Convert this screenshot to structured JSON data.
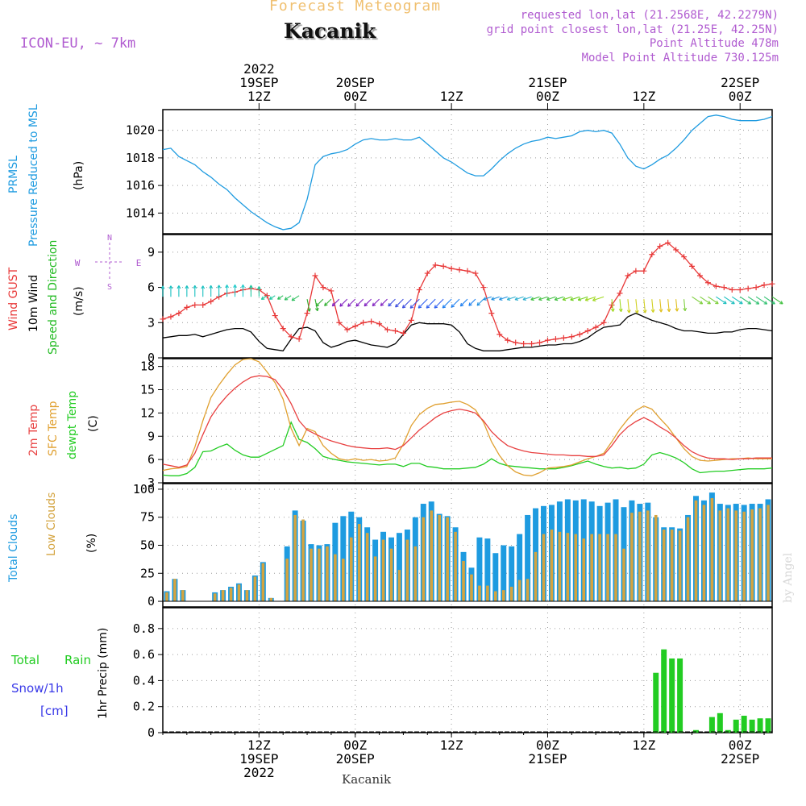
{
  "header": {
    "title": "Forecast Meteogram",
    "location": "Kacanik",
    "model": "ICON-EU, ~ 7km",
    "requested": "requested lon,lat (21.2568E, 42.2279N)",
    "grid_point": "grid point closest lon,lat (21.25E, 42.25N)",
    "point_altitude": "Point Altitude 478m",
    "model_altitude": "Model Point Altitude 730.125m",
    "footer_location": "Kacanik",
    "watermark": "by Angel"
  },
  "time_axis": {
    "top_ticks": [
      {
        "t": 12,
        "lines": [
          "2022",
          "19SEP",
          "12Z"
        ]
      },
      {
        "t": 24,
        "lines": [
          "20SEP",
          "00Z"
        ]
      },
      {
        "t": 36,
        "lines": [
          "12Z"
        ]
      },
      {
        "t": 48,
        "lines": [
          "21SEP",
          "00Z"
        ]
      },
      {
        "t": 60,
        "lines": [
          "12Z"
        ]
      },
      {
        "t": 72,
        "lines": [
          "22SEP",
          "00Z"
        ]
      }
    ],
    "bottom_ticks": [
      {
        "t": 12,
        "lines": [
          "12Z",
          "19SEP",
          "2022"
        ]
      },
      {
        "t": 24,
        "lines": [
          "00Z",
          "20SEP"
        ]
      },
      {
        "t": 36,
        "lines": [
          "12Z"
        ]
      },
      {
        "t": 48,
        "lines": [
          "00Z",
          "21SEP"
        ]
      },
      {
        "t": 60,
        "lines": [
          "12Z"
        ]
      },
      {
        "t": 72,
        "lines": [
          "00Z",
          "22SEP"
        ]
      }
    ]
  },
  "colors": {
    "pressure": "#1e9be0",
    "gust": "#e83838",
    "wind10m": "#000000",
    "wind_label": "#22bb22",
    "temp2m": "#e84040",
    "sfc_temp": "#e0a030",
    "dewpoint": "#22cc22",
    "total_clouds": "#1e9be0",
    "low_clouds": "#d4a440",
    "rain": "#22cc22",
    "snow": "#3a3ae8",
    "purple": "#b05bd0"
  },
  "panels": {
    "pressure": {
      "labels": [
        "PRMSL",
        "Pressure Reduced to MSL",
        "(hPa)"
      ]
    },
    "wind": {
      "labels": [
        "Wind GUST",
        "10m Wind",
        "Speed and Direction",
        "(m/s)"
      ],
      "compass": {
        "n": "N",
        "s": "S",
        "w": "W",
        "e": "E"
      }
    },
    "temp": {
      "labels": [
        "2m Temp",
        "SFC Temp",
        "dewpt Temp",
        "(C)"
      ]
    },
    "clouds": {
      "labels": [
        "Total Clouds",
        "Low Clouds",
        "(%)"
      ]
    },
    "precip": {
      "labels": [
        "Total",
        "Rain",
        "Snow/1h",
        "[cm]",
        "1hr Precip (mm)"
      ]
    }
  },
  "chart_data": [
    {
      "type": "line",
      "name": "pressure",
      "ylim": [
        1012.5,
        1021.5
      ],
      "yticks": [
        1014,
        1016,
        1018,
        1020
      ],
      "x": [
        0,
        1,
        2,
        3,
        4,
        5,
        6,
        7,
        8,
        9,
        10,
        11,
        12,
        13,
        14,
        15,
        16,
        17,
        18,
        19,
        20,
        21,
        22,
        23,
        24,
        25,
        26,
        27,
        28,
        29,
        30,
        31,
        32,
        33,
        34,
        35,
        36,
        37,
        38,
        39,
        40,
        41,
        42,
        43,
        44,
        45,
        46,
        47,
        48,
        49,
        50,
        51,
        52,
        53,
        54,
        55,
        56,
        57,
        58,
        59,
        60,
        61,
        62,
        63,
        64,
        65,
        66,
        67,
        68,
        69,
        70,
        71,
        72,
        73,
        74,
        75,
        76
      ],
      "series": [
        {
          "values": [
            1018.6,
            1018.7,
            1018.1,
            1017.8,
            1017.5,
            1017.0,
            1016.6,
            1016.1,
            1015.7,
            1015.1,
            1014.6,
            1014.1,
            1013.7,
            1013.3,
            1013.0,
            1012.8,
            1012.9,
            1013.3,
            1015.0,
            1017.5,
            1018.1,
            1018.3,
            1018.4,
            1018.6,
            1019.0,
            1019.3,
            1019.4,
            1019.3,
            1019.3,
            1019.4,
            1019.3,
            1019.3,
            1019.5,
            1019.0,
            1018.5,
            1018.0,
            1017.7,
            1017.3,
            1016.9,
            1016.7,
            1016.7,
            1017.2,
            1017.8,
            1018.3,
            1018.7,
            1019.0,
            1019.2,
            1019.3,
            1019.5,
            1019.4,
            1019.5,
            1019.6,
            1019.9,
            1020.0,
            1019.9,
            1020.0,
            1019.8,
            1019.0,
            1018.0,
            1017.4,
            1017.2,
            1017.5,
            1017.9,
            1018.2,
            1018.7,
            1019.3,
            1020.0,
            1020.5,
            1021.0,
            1021.1,
            1021.0,
            1020.8,
            1020.7,
            1020.7,
            1020.7,
            1020.8,
            1021.0
          ]
        }
      ]
    },
    {
      "type": "line",
      "name": "wind",
      "ylim": [
        0,
        10.5
      ],
      "yticks": [
        0,
        3,
        6,
        9
      ],
      "x": [
        0,
        1,
        2,
        3,
        4,
        5,
        6,
        7,
        8,
        9,
        10,
        11,
        12,
        13,
        14,
        15,
        16,
        17,
        18,
        19,
        20,
        21,
        22,
        23,
        24,
        25,
        26,
        27,
        28,
        29,
        30,
        31,
        32,
        33,
        34,
        35,
        36,
        37,
        38,
        39,
        40,
        41,
        42,
        43,
        44,
        45,
        46,
        47,
        48,
        49,
        50,
        51,
        52,
        53,
        54,
        55,
        56,
        57,
        58,
        59,
        60,
        61,
        62,
        63,
        64,
        65,
        66,
        67,
        68,
        69,
        70,
        71,
        72,
        73,
        74,
        75,
        76
      ],
      "series": [
        {
          "name": "Wind GUST",
          "values": [
            3.3,
            3.5,
            3.8,
            4.3,
            4.5,
            4.5,
            4.8,
            5.2,
            5.5,
            5.6,
            5.8,
            5.9,
            5.8,
            5.3,
            3.6,
            2.5,
            1.8,
            1.6,
            3.8,
            7.0,
            6.0,
            5.7,
            3.0,
            2.4,
            2.7,
            3.0,
            3.1,
            2.9,
            2.4,
            2.3,
            2.1,
            3.2,
            5.8,
            7.2,
            7.9,
            7.8,
            7.6,
            7.5,
            7.4,
            7.2,
            6.0,
            3.8,
            2.0,
            1.5,
            1.3,
            1.2,
            1.2,
            1.3,
            1.5,
            1.6,
            1.7,
            1.8,
            2.0,
            2.3,
            2.6,
            3.0,
            4.5,
            5.5,
            7.0,
            7.4,
            7.4,
            8.8,
            9.5,
            9.8,
            9.2,
            8.6,
            7.8,
            7.0,
            6.4,
            6.1,
            6.0,
            5.8,
            5.8,
            5.9,
            6.0,
            6.2,
            6.3
          ]
        },
        {
          "name": "10m Wind",
          "values": [
            1.7,
            1.8,
            1.9,
            1.9,
            2.0,
            1.8,
            2.0,
            2.2,
            2.4,
            2.5,
            2.5,
            2.2,
            1.4,
            0.8,
            0.7,
            0.6,
            1.6,
            2.5,
            2.6,
            2.3,
            1.3,
            0.9,
            1.1,
            1.4,
            1.5,
            1.3,
            1.1,
            1.0,
            0.9,
            1.2,
            2.0,
            2.8,
            3.0,
            2.9,
            2.9,
            2.9,
            2.8,
            2.2,
            1.2,
            0.8,
            0.6,
            0.6,
            0.6,
            0.7,
            0.8,
            0.9,
            0.9,
            1.0,
            1.1,
            1.1,
            1.2,
            1.2,
            1.4,
            1.7,
            2.2,
            2.6,
            2.7,
            2.8,
            3.5,
            3.8,
            3.5,
            3.2,
            3.0,
            2.8,
            2.5,
            2.3,
            2.3,
            2.2,
            2.1,
            2.1,
            2.2,
            2.2,
            2.4,
            2.5,
            2.5,
            2.4,
            2.3
          ]
        }
      ]
    },
    {
      "type": "line",
      "name": "temperature",
      "ylim": [
        3,
        19
      ],
      "yticks": [
        3,
        6,
        9,
        12,
        15,
        18
      ],
      "x": [
        0,
        1,
        2,
        3,
        4,
        5,
        6,
        7,
        8,
        9,
        10,
        11,
        12,
        13,
        14,
        15,
        16,
        17,
        18,
        19,
        20,
        21,
        22,
        23,
        24,
        25,
        26,
        27,
        28,
        29,
        30,
        31,
        32,
        33,
        34,
        35,
        36,
        37,
        38,
        39,
        40,
        41,
        42,
        43,
        44,
        45,
        46,
        47,
        48,
        49,
        50,
        51,
        52,
        53,
        54,
        55,
        56,
        57,
        58,
        59,
        60,
        61,
        62,
        63,
        64,
        65,
        66,
        67,
        68,
        69,
        70,
        71,
        72,
        73,
        74,
        75,
        76
      ],
      "series": [
        {
          "name": "2m Temp",
          "values": [
            5.4,
            5.2,
            5.0,
            5.3,
            6.8,
            9.2,
            11.5,
            13.0,
            14.2,
            15.2,
            16.0,
            16.6,
            16.8,
            16.7,
            16.3,
            15.0,
            13.2,
            11.0,
            9.8,
            9.3,
            8.8,
            8.4,
            8.1,
            7.8,
            7.6,
            7.5,
            7.4,
            7.4,
            7.5,
            7.3,
            7.8,
            8.8,
            9.8,
            10.6,
            11.4,
            12.0,
            12.3,
            12.5,
            12.3,
            12.0,
            11.0,
            9.6,
            8.6,
            7.8,
            7.4,
            7.1,
            6.9,
            6.8,
            6.7,
            6.6,
            6.6,
            6.5,
            6.5,
            6.4,
            6.4,
            6.6,
            7.8,
            9.2,
            10.2,
            10.9,
            11.4,
            10.9,
            10.2,
            9.6,
            8.8,
            7.8,
            7.0,
            6.5,
            6.2,
            6.1,
            6.1,
            6.0,
            6.1,
            6.1,
            6.2,
            6.2,
            6.2
          ]
        },
        {
          "name": "SFC Temp",
          "values": [
            4.6,
            4.8,
            4.9,
            5.1,
            7.6,
            11.0,
            14.0,
            15.6,
            17.0,
            18.2,
            18.9,
            19.0,
            18.6,
            17.3,
            15.9,
            13.8,
            10.0,
            7.8,
            10.0,
            9.6,
            7.8,
            6.8,
            6.1,
            5.9,
            6.1,
            5.9,
            6.0,
            5.8,
            5.9,
            6.2,
            8.0,
            10.4,
            11.8,
            12.6,
            13.1,
            13.2,
            13.4,
            13.5,
            13.1,
            12.4,
            10.8,
            8.3,
            6.5,
            5.2,
            4.4,
            4.0,
            3.9,
            4.3,
            4.9,
            5.0,
            5.1,
            5.3,
            5.7,
            6.1,
            6.4,
            6.8,
            8.3,
            9.9,
            11.2,
            12.3,
            12.9,
            12.5,
            11.3,
            10.2,
            8.8,
            7.4,
            6.4,
            5.9,
            5.8,
            5.9,
            6.0,
            6.1,
            6.1,
            6.2,
            6.1,
            6.1,
            6.1
          ]
        },
        {
          "name": "dewpt Temp",
          "values": [
            4.0,
            3.9,
            3.9,
            4.2,
            5.0,
            7.0,
            7.1,
            7.6,
            8.0,
            7.2,
            6.6,
            6.3,
            6.3,
            6.8,
            7.3,
            7.8,
            10.8,
            8.6,
            8.2,
            7.4,
            6.4,
            6.1,
            5.9,
            5.7,
            5.6,
            5.5,
            5.4,
            5.3,
            5.4,
            5.4,
            5.1,
            5.5,
            5.5,
            5.1,
            5.0,
            4.8,
            4.8,
            4.8,
            4.9,
            5.0,
            5.4,
            6.1,
            5.5,
            5.2,
            5.1,
            5.0,
            4.9,
            4.8,
            4.8,
            4.8,
            5.0,
            5.2,
            5.5,
            5.8,
            5.4,
            5.1,
            4.9,
            5.0,
            4.8,
            4.9,
            5.4,
            6.6,
            6.9,
            6.6,
            6.2,
            5.6,
            4.8,
            4.3,
            4.4,
            4.5,
            4.5,
            4.6,
            4.7,
            4.8,
            4.8,
            4.8,
            4.9
          ]
        }
      ]
    },
    {
      "type": "bar",
      "name": "clouds",
      "ylim": [
        -5,
        105
      ],
      "yticks": [
        0,
        25,
        50,
        75,
        100
      ],
      "x": [
        1,
        2,
        3,
        4,
        5,
        6,
        7,
        8,
        9,
        10,
        11,
        12,
        13,
        14,
        15,
        16,
        17,
        18,
        19,
        20,
        21,
        22,
        23,
        24,
        25,
        26,
        27,
        28,
        29,
        30,
        31,
        32,
        33,
        34,
        35,
        36,
        37,
        38,
        39,
        40,
        41,
        42,
        43,
        44,
        45,
        46,
        47,
        48,
        49,
        50,
        51,
        52,
        53,
        54,
        55,
        56,
        57,
        58,
        59,
        60,
        61,
        62,
        63,
        64,
        65,
        66,
        67,
        68,
        69,
        70,
        71,
        72,
        73,
        74,
        75,
        76
      ],
      "series": [
        {
          "name": "Total Clouds",
          "values": [
            9,
            20,
            10,
            0,
            0,
            0,
            8,
            10,
            13,
            16,
            10,
            23,
            35,
            3,
            0,
            49,
            81,
            72,
            51,
            50,
            51,
            70,
            76,
            80,
            75,
            66,
            55,
            62,
            57,
            61,
            64,
            75,
            87,
            89,
            78,
            76,
            66,
            44,
            30,
            57,
            56,
            43,
            50,
            49,
            60,
            77,
            83,
            85,
            86,
            89,
            91,
            90,
            91,
            89,
            85,
            88,
            91,
            84,
            90,
            87,
            88,
            75,
            66,
            66,
            65,
            77,
            94,
            90,
            97,
            87,
            86,
            87,
            86,
            87,
            87,
            91
          ]
        },
        {
          "name": "Low Clouds",
          "values": [
            8,
            20,
            10,
            0,
            0,
            0,
            7,
            10,
            12,
            15,
            10,
            22,
            34,
            3,
            0,
            38,
            77,
            73,
            47,
            47,
            49,
            42,
            38,
            57,
            69,
            61,
            40,
            55,
            47,
            28,
            55,
            49,
            75,
            81,
            77,
            75,
            62,
            36,
            24,
            14,
            14,
            9,
            10,
            13,
            19,
            20,
            44,
            60,
            64,
            62,
            61,
            60,
            56,
            60,
            60,
            60,
            60,
            47,
            79,
            80,
            81,
            77,
            64,
            64,
            63,
            75,
            90,
            86,
            92,
            81,
            83,
            81,
            80,
            82,
            83,
            86
          ]
        }
      ]
    },
    {
      "type": "bar",
      "name": "precipitation",
      "ylim": [
        0,
        0.96
      ],
      "yticks": [
        0,
        0.2,
        0.4,
        0.6,
        0.8
      ],
      "x": [
        62,
        63,
        64,
        65,
        67,
        68,
        69,
        70,
        71,
        72,
        73,
        74,
        75,
        76
      ],
      "series": [
        {
          "name": "Total Rain",
          "values": [
            0.46,
            0.64,
            0.57,
            0.57,
            0.02,
            0.0,
            0.12,
            0.15,
            0.02,
            0.1,
            0.13,
            0.1,
            0.11,
            0.11
          ]
        }
      ]
    }
  ]
}
